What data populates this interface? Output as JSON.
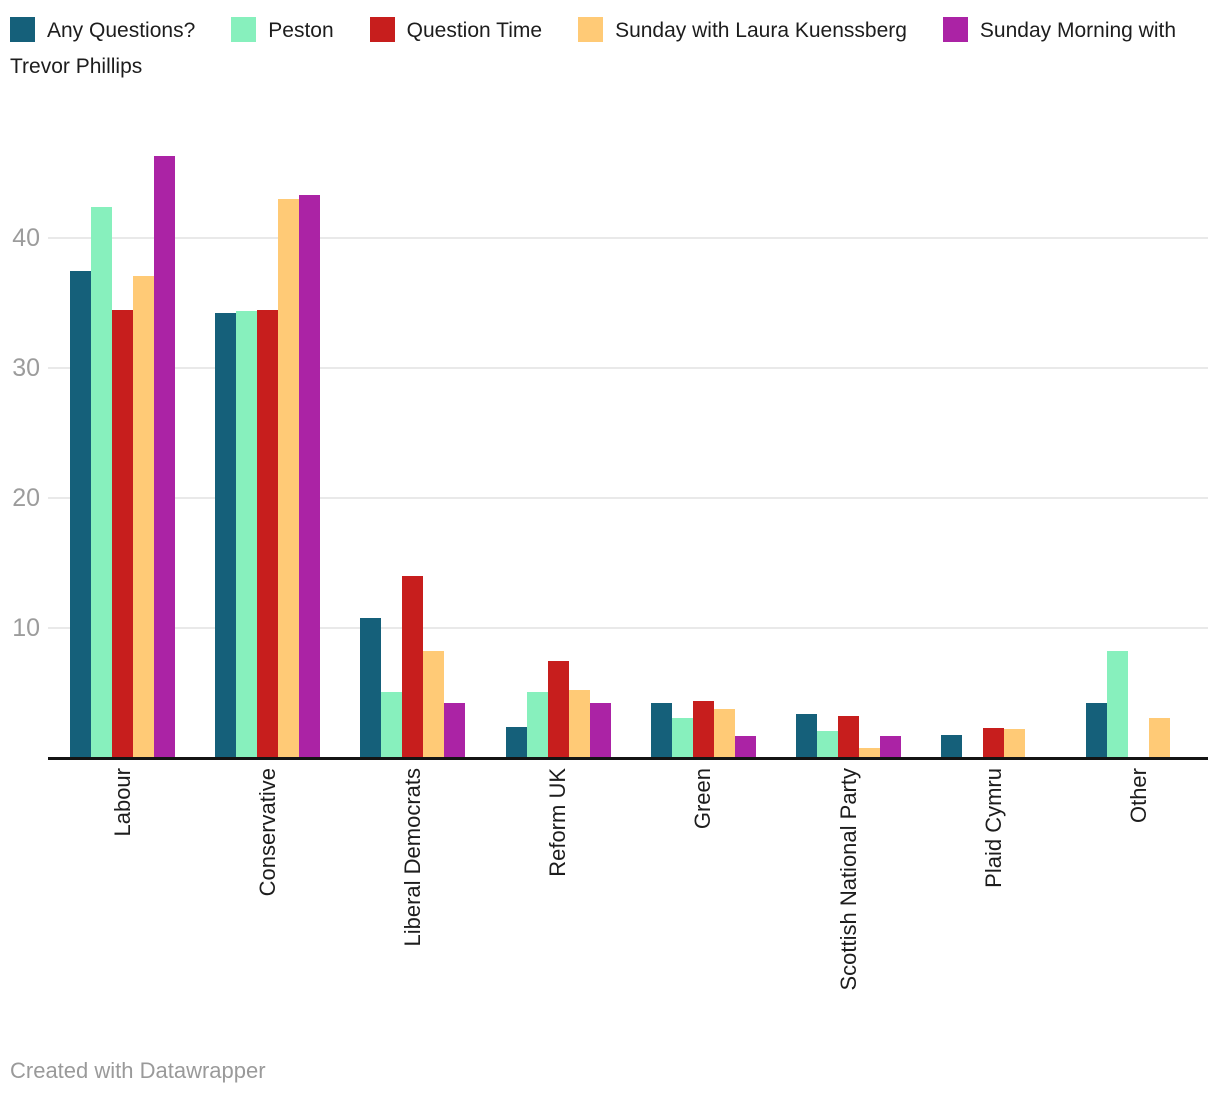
{
  "chart_data": {
    "type": "bar",
    "title": "",
    "xlabel": "",
    "ylabel": "",
    "categories": [
      "Labour",
      "Conservative",
      "Liberal Democrats",
      "Reform UK",
      "Green",
      "Scottish National Party",
      "Plaid Cymru",
      "Other"
    ],
    "series": [
      {
        "name": "Any Questions?",
        "color": "#15607a",
        "values": [
          37.5,
          34.2,
          10.8,
          2.4,
          4.2,
          3.4,
          1.8,
          4.2
        ]
      },
      {
        "name": "Peston",
        "color": "#87f0bd",
        "values": [
          42.4,
          34.4,
          5.1,
          5.1,
          3.1,
          2.1,
          0,
          8.2
        ]
      },
      {
        "name": "Question Time",
        "color": "#c71e1d",
        "values": [
          34.5,
          34.5,
          14.0,
          7.5,
          4.4,
          3.2,
          2.3,
          0
        ]
      },
      {
        "name": "Sunday with Laura Kuenssberg",
        "color": "#ffca76",
        "values": [
          37.1,
          43.0,
          8.2,
          5.2,
          3.8,
          0.8,
          2.2,
          3.1
        ]
      },
      {
        "name": "Sunday Morning with Trevor Phillips",
        "color": "#ab23a5",
        "values": [
          46.3,
          43.3,
          4.2,
          4.2,
          1.7,
          1.7,
          0,
          0
        ]
      }
    ],
    "yticks": [
      10,
      20,
      30,
      40
    ],
    "ylim": [
      0,
      47
    ],
    "grid": true,
    "legend_position": "top"
  },
  "footer": {
    "text": "Created with Datawrapper"
  }
}
